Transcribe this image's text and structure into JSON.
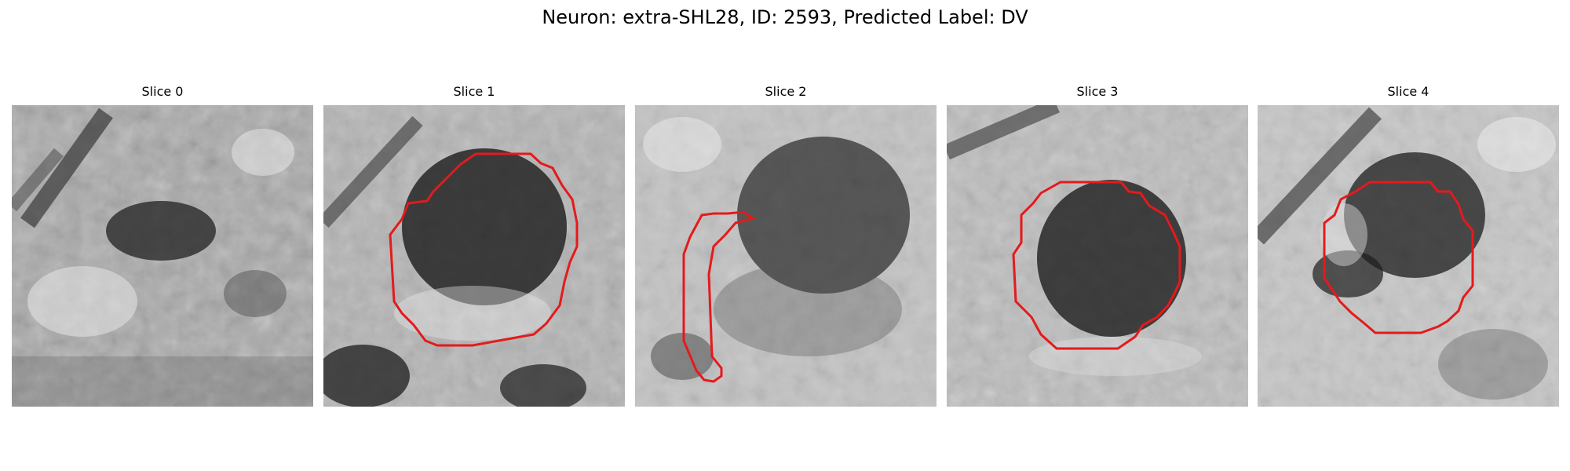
{
  "figure": {
    "title": "Neuron: extra-SHL28, ID: 2593, Predicted Label: DV"
  },
  "colors": {
    "contour": "#e41a1c",
    "background": "#ffffff"
  },
  "panels": [
    {
      "title": "Slice 0",
      "has_contour": false
    },
    {
      "title": "Slice 1",
      "has_contour": true
    },
    {
      "title": "Slice 2",
      "has_contour": true
    },
    {
      "title": "Slice 3",
      "has_contour": true
    },
    {
      "title": "Slice 4",
      "has_contour": true
    }
  ]
}
